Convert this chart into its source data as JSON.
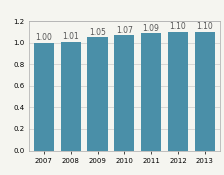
{
  "categories": [
    "2007",
    "2008",
    "2009",
    "2010",
    "2011",
    "2012",
    "2013"
  ],
  "values": [
    1.0,
    1.01,
    1.05,
    1.07,
    1.09,
    1.1,
    1.1
  ],
  "bar_color": "#4a8fa8",
  "ylim": [
    0.0,
    1.2
  ],
  "yticks": [
    0.0,
    0.2,
    0.4,
    0.6,
    0.8,
    1.0,
    1.2
  ],
  "label_fontsize": 5.5,
  "tick_fontsize": 5.0,
  "background_color": "#f5f5f0",
  "plot_bg_color": "#f5f5f0",
  "grid_color": "#cccccc",
  "border_color": "#aaaaaa",
  "bar_width": 0.75,
  "label_color": "#555555"
}
